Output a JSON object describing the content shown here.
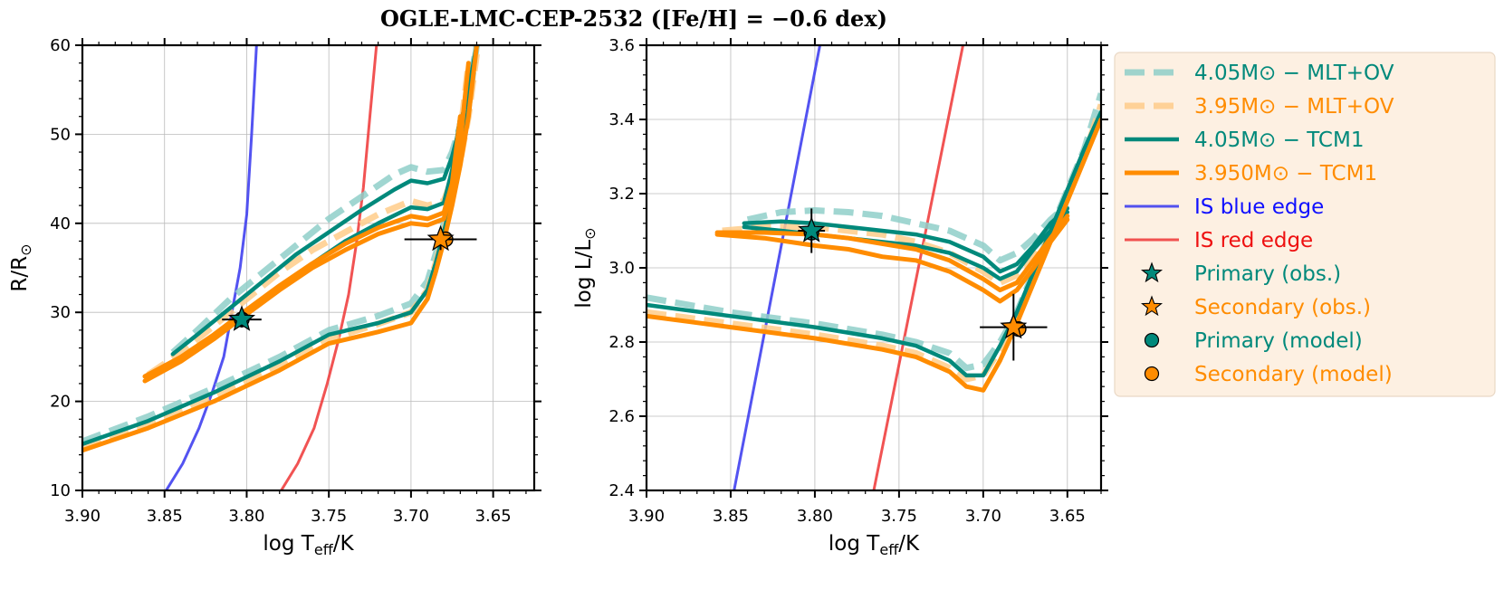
{
  "title": "OGLE-LMC-CEP-2532 ([Fe/H] = −0.6 dex)",
  "colors": {
    "teal": "#00897b",
    "orange": "#ff8c00",
    "teal_light": "#8fcfc9",
    "orange_light": "#ffcc8a",
    "blue_edge": "#4040f0",
    "red_edge": "#f04040",
    "legend_bg": "#fdf0e2"
  },
  "legend": [
    {
      "label": "4.05M⊙ − MLT+OV",
      "style": "dashed-teal",
      "color": "#00897b"
    },
    {
      "label": "3.95M⊙ − MLT+OV",
      "style": "dashed-orange",
      "color": "#ff8c00"
    },
    {
      "label": "4.05M⊙ − TCM1",
      "style": "solid-teal",
      "color": "#00897b"
    },
    {
      "label": "3.950M⊙ − TCM1",
      "style": "solid-orange",
      "color": "#ff8c00"
    },
    {
      "label": "IS blue edge",
      "style": "blue-line",
      "color": "#1010ff"
    },
    {
      "label": "IS red edge",
      "style": "red-line",
      "color": "#ee1010"
    },
    {
      "label": "Primary (obs.)",
      "style": "star-teal",
      "color": "#00897b"
    },
    {
      "label": "Secondary (obs.)",
      "style": "star-orange",
      "color": "#ff8c00"
    },
    {
      "label": "Primary (model)",
      "style": "circle-teal",
      "color": "#00897b"
    },
    {
      "label": "Secondary (model)",
      "style": "circle-orange",
      "color": "#ff8c00"
    }
  ],
  "chart_data": [
    {
      "type": "line",
      "xlabel": "log T_eff/K",
      "ylabel": "R/R⊙",
      "xlim": [
        3.9,
        3.625
      ],
      "ylim": [
        10,
        60
      ],
      "xticks": [
        "3.90",
        "3.85",
        "3.80",
        "3.75",
        "3.70",
        "3.65"
      ],
      "yticks": [
        "10",
        "20",
        "30",
        "40",
        "50",
        "60"
      ],
      "grid": true,
      "series": [
        {
          "style": "blue-line",
          "x": [
            3.849,
            3.839,
            3.829,
            3.821,
            3.814,
            3.809,
            3.804,
            3.8,
            3.797,
            3.794
          ],
          "y": [
            10,
            13,
            17,
            21,
            25,
            30,
            35,
            41,
            50,
            60
          ]
        },
        {
          "style": "red-line",
          "x": [
            3.779,
            3.769,
            3.759,
            3.751,
            3.744,
            3.738,
            3.733,
            3.729,
            3.725,
            3.721
          ],
          "y": [
            10,
            13,
            17,
            22,
            27,
            32,
            38,
            44,
            52,
            60
          ]
        },
        {
          "style": "dashed-teal",
          "x": [
            3.9,
            3.86,
            3.82,
            3.78,
            3.75,
            3.72,
            3.7,
            3.69,
            3.685,
            3.68,
            3.675,
            3.67,
            3.665,
            3.66
          ],
          "y": [
            15.5,
            18.3,
            21.5,
            25,
            28,
            29.6,
            31,
            33.5,
            36.5,
            40,
            44,
            48,
            53,
            60
          ]
        },
        {
          "style": "dashed-teal",
          "x": [
            3.845,
            3.83,
            3.81,
            3.79,
            3.77,
            3.75,
            3.73,
            3.71,
            3.7,
            3.69,
            3.68,
            3.675,
            3.67,
            3.665,
            3.66
          ],
          "y": [
            25.5,
            28,
            31.5,
            34.5,
            37.5,
            40.5,
            43,
            45.5,
            46.3,
            45.8,
            46,
            48,
            51,
            55,
            60
          ]
        },
        {
          "style": "dashed-orange",
          "x": [
            3.9,
            3.86,
            3.82,
            3.78,
            3.75,
            3.72,
            3.7,
            3.69,
            3.685,
            3.68,
            3.675,
            3.67,
            3.665,
            3.66
          ],
          "y": [
            14.8,
            17.5,
            20.5,
            24,
            27,
            28.7,
            30,
            32.5,
            35.5,
            39,
            43,
            47,
            52,
            59
          ]
        },
        {
          "style": "dashed-orange",
          "x": [
            3.86,
            3.84,
            3.82,
            3.8,
            3.78,
            3.76,
            3.74,
            3.72,
            3.7,
            3.69,
            3.68,
            3.675,
            3.67,
            3.665
          ],
          "y": [
            23,
            25.5,
            28.5,
            31.5,
            34.5,
            37,
            39,
            41,
            42.5,
            42,
            42.5,
            45,
            50,
            58
          ]
        },
        {
          "style": "solid-teal",
          "x": [
            3.9,
            3.86,
            3.82,
            3.78,
            3.75,
            3.72,
            3.7,
            3.69,
            3.685,
            3.68,
            3.675,
            3.67,
            3.665,
            3.66
          ],
          "y": [
            15.2,
            17.8,
            21,
            24.5,
            27.5,
            28.8,
            30,
            32.5,
            35.5,
            39,
            43,
            47.5,
            53,
            60
          ]
        },
        {
          "style": "solid-teal",
          "x": [
            3.845,
            3.83,
            3.81,
            3.79,
            3.77,
            3.75,
            3.73,
            3.71,
            3.7,
            3.69,
            3.68,
            3.675,
            3.67,
            3.665,
            3.66
          ],
          "y": [
            25.3,
            27.5,
            30.5,
            33.5,
            36.5,
            39,
            41.5,
            43.8,
            44.8,
            44.5,
            45,
            47.5,
            51,
            55,
            60
          ]
        },
        {
          "style": "solid-teal",
          "x": [
            3.84,
            3.82,
            3.8,
            3.78,
            3.76,
            3.74,
            3.72,
            3.7,
            3.69,
            3.68,
            3.675,
            3.67
          ],
          "y": [
            25,
            27.3,
            30,
            32.8,
            35.5,
            38,
            40,
            41.8,
            41.6,
            42.3,
            46,
            52
          ]
        },
        {
          "style": "solid-orange",
          "x": [
            3.9,
            3.86,
            3.82,
            3.78,
            3.75,
            3.72,
            3.7,
            3.69,
            3.685,
            3.68,
            3.675,
            3.67,
            3.665,
            3.66
          ],
          "y": [
            14.5,
            17,
            20,
            23.5,
            26.5,
            27.8,
            28.8,
            31.5,
            34.5,
            38,
            42,
            46.5,
            52,
            60
          ]
        },
        {
          "style": "solid-orange",
          "x": [
            3.862,
            3.84,
            3.82,
            3.8,
            3.78,
            3.76,
            3.74,
            3.72,
            3.7,
            3.69,
            3.68,
            3.675,
            3.67,
            3.665
          ],
          "y": [
            22.3,
            24.5,
            27,
            29.8,
            32.5,
            35,
            37,
            38.8,
            40,
            39.8,
            40.5,
            43.5,
            49,
            58
          ]
        },
        {
          "style": "solid-orange",
          "x": [
            3.862,
            3.84,
            3.82,
            3.8,
            3.78,
            3.76,
            3.74,
            3.72,
            3.7,
            3.69,
            3.68,
            3.675,
            3.67
          ],
          "y": [
            22.8,
            25,
            27.5,
            30.3,
            33,
            35.5,
            37.7,
            39.5,
            40.8,
            40.5,
            41.2,
            44.5,
            52
          ]
        }
      ],
      "points": [
        {
          "style": "circle-teal",
          "x": 3.803,
          "y": 29.2
        },
        {
          "style": "star-teal",
          "x": 3.803,
          "y": 29.2,
          "xerr": 0.012,
          "yerr": 0.9
        },
        {
          "style": "circle-orange",
          "x": 3.679,
          "y": 38.2
        },
        {
          "style": "star-orange",
          "x": 3.682,
          "y": 38.2,
          "xerr": 0.022,
          "yerr": 1.2
        }
      ]
    },
    {
      "type": "line",
      "xlabel": "log T_eff/K",
      "ylabel": "log L/L⊙",
      "xlim": [
        3.9,
        3.63
      ],
      "ylim": [
        2.4,
        3.6
      ],
      "xticks": [
        "3.90",
        "3.85",
        "3.80",
        "3.75",
        "3.70",
        "3.65"
      ],
      "yticks": [
        "2.4",
        "2.6",
        "2.8",
        "3.0",
        "3.2",
        "3.4",
        "3.6"
      ],
      "grid": true,
      "series": [
        {
          "style": "blue-line",
          "x": [
            3.848,
            3.797
          ],
          "y": [
            2.4,
            3.6
          ]
        },
        {
          "style": "red-line",
          "x": [
            3.765,
            3.712
          ],
          "y": [
            2.4,
            3.6
          ]
        },
        {
          "style": "dashed-teal",
          "x": [
            3.9,
            3.85,
            3.8,
            3.76,
            3.74,
            3.72,
            3.71,
            3.7,
            3.69,
            3.68,
            3.67,
            3.66,
            3.65,
            3.64,
            3.63
          ],
          "y": [
            2.92,
            2.88,
            2.85,
            2.82,
            2.8,
            2.77,
            2.73,
            2.74,
            2.8,
            2.88,
            2.99,
            3.1,
            3.21,
            3.32,
            3.47
          ]
        },
        {
          "style": "dashed-teal",
          "x": [
            3.84,
            3.82,
            3.8,
            3.78,
            3.76,
            3.74,
            3.72,
            3.7,
            3.69,
            3.68,
            3.67,
            3.66,
            3.65
          ],
          "y": [
            3.13,
            3.15,
            3.155,
            3.15,
            3.14,
            3.12,
            3.1,
            3.06,
            3.02,
            3.04,
            3.08,
            3.13,
            3.17
          ]
        },
        {
          "style": "dashed-orange",
          "x": [
            3.9,
            3.85,
            3.8,
            3.76,
            3.74,
            3.72,
            3.71,
            3.7,
            3.69,
            3.68,
            3.67,
            3.66,
            3.65,
            3.64,
            3.63
          ],
          "y": [
            2.88,
            2.85,
            2.82,
            2.79,
            2.77,
            2.73,
            2.7,
            2.71,
            2.78,
            2.86,
            2.97,
            3.08,
            3.19,
            3.3,
            3.44
          ]
        },
        {
          "style": "dashed-orange",
          "x": [
            3.855,
            3.83,
            3.8,
            3.78,
            3.76,
            3.74,
            3.72,
            3.7,
            3.69,
            3.68,
            3.67,
            3.66,
            3.65
          ],
          "y": [
            3.1,
            3.11,
            3.11,
            3.1,
            3.09,
            3.07,
            3.04,
            2.99,
            2.96,
            2.98,
            3.03,
            3.09,
            3.14
          ]
        },
        {
          "style": "solid-teal",
          "x": [
            3.9,
            3.85,
            3.8,
            3.76,
            3.74,
            3.72,
            3.71,
            3.7,
            3.69,
            3.68,
            3.67,
            3.66,
            3.65,
            3.64,
            3.63
          ],
          "y": [
            2.9,
            2.87,
            2.84,
            2.81,
            2.79,
            2.75,
            2.71,
            2.71,
            2.79,
            2.88,
            2.99,
            3.1,
            3.21,
            3.32,
            3.42
          ]
        },
        {
          "style": "solid-teal",
          "x": [
            3.842,
            3.82,
            3.8,
            3.78,
            3.76,
            3.74,
            3.72,
            3.7,
            3.69,
            3.68,
            3.67,
            3.66,
            3.65
          ],
          "y": [
            3.12,
            3.125,
            3.12,
            3.11,
            3.1,
            3.09,
            3.07,
            3.03,
            2.99,
            3.01,
            3.06,
            3.12,
            3.16
          ]
        },
        {
          "style": "solid-teal",
          "x": [
            3.842,
            3.82,
            3.8,
            3.78,
            3.76,
            3.74,
            3.72,
            3.7,
            3.69,
            3.68,
            3.67,
            3.66,
            3.65
          ],
          "y": [
            3.11,
            3.1,
            3.09,
            3.08,
            3.07,
            3.06,
            3.04,
            3.0,
            2.97,
            2.99,
            3.05,
            3.1,
            3.15
          ]
        },
        {
          "style": "solid-orange",
          "x": [
            3.9,
            3.85,
            3.8,
            3.76,
            3.74,
            3.72,
            3.71,
            3.7,
            3.69,
            3.68,
            3.67,
            3.66,
            3.65,
            3.64,
            3.63
          ],
          "y": [
            2.87,
            2.84,
            2.81,
            2.78,
            2.76,
            2.72,
            2.68,
            2.67,
            2.75,
            2.85,
            2.96,
            3.07,
            3.18,
            3.29,
            3.4
          ]
        },
        {
          "style": "solid-orange",
          "x": [
            3.858,
            3.83,
            3.8,
            3.78,
            3.76,
            3.74,
            3.72,
            3.7,
            3.69,
            3.68,
            3.67,
            3.66,
            3.65
          ],
          "y": [
            3.09,
            3.08,
            3.06,
            3.05,
            3.03,
            3.02,
            2.99,
            2.94,
            2.91,
            2.94,
            3.0,
            3.07,
            3.13
          ]
        },
        {
          "style": "solid-orange",
          "x": [
            3.858,
            3.83,
            3.8,
            3.78,
            3.76,
            3.74,
            3.72,
            3.7,
            3.69,
            3.68,
            3.67,
            3.66,
            3.65
          ],
          "y": [
            3.095,
            3.095,
            3.09,
            3.08,
            3.065,
            3.05,
            3.02,
            2.97,
            2.94,
            2.96,
            3.02,
            3.08,
            3.14
          ]
        }
      ],
      "points": [
        {
          "style": "circle-teal",
          "x": 3.802,
          "y": 3.095
        },
        {
          "style": "star-teal",
          "x": 3.802,
          "y": 3.1,
          "xerr": 0.008,
          "yerr": 0.06
        },
        {
          "style": "circle-orange",
          "x": 3.679,
          "y": 2.835
        },
        {
          "style": "star-orange",
          "x": 3.682,
          "y": 2.84,
          "xerr": 0.02,
          "yerr": 0.09
        }
      ]
    }
  ]
}
